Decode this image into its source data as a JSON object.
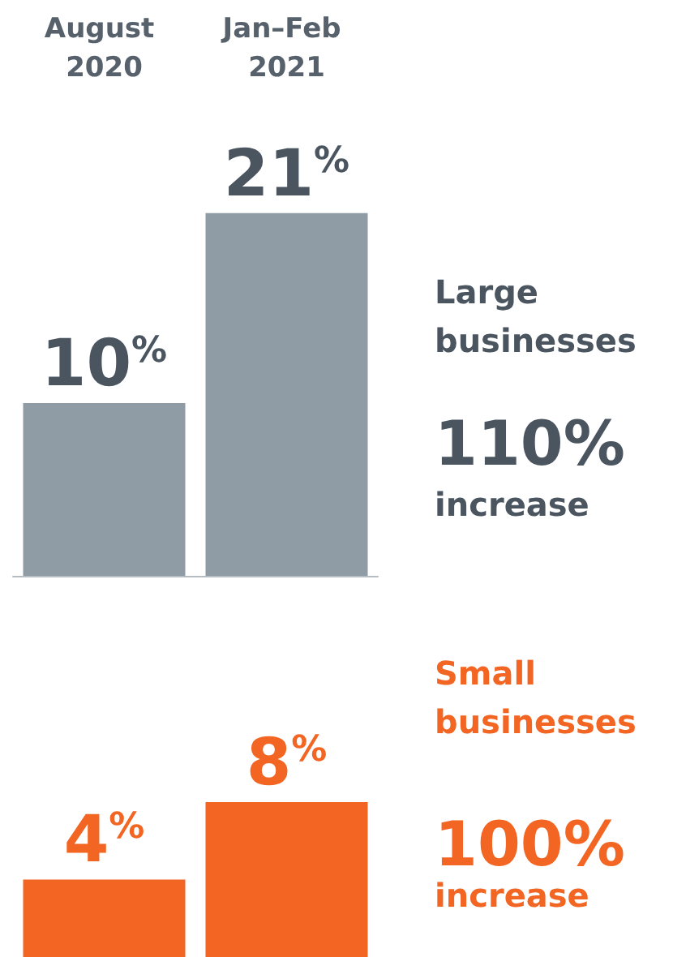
{
  "chart_data": [
    {
      "type": "bar",
      "categories": [
        "August 2020",
        "Jan–Feb 2021"
      ],
      "values": [
        10,
        21
      ],
      "value_labels": [
        "10%",
        "21%"
      ],
      "color": "#8f9ca6",
      "tick_labels": "x",
      "annotations": [
        "Large businesses",
        "110%",
        "increase"
      ]
    },
    {
      "type": "bar",
      "categories": [
        "August 2020",
        "Jan–Feb 2021"
      ],
      "values": [
        4,
        8
      ],
      "value_labels": [
        "4%",
        "8%"
      ],
      "color": "#f26522",
      "tick_labels": false,
      "annotations": [
        "Small businesses",
        "100%",
        "increase"
      ]
    }
  ]
}
